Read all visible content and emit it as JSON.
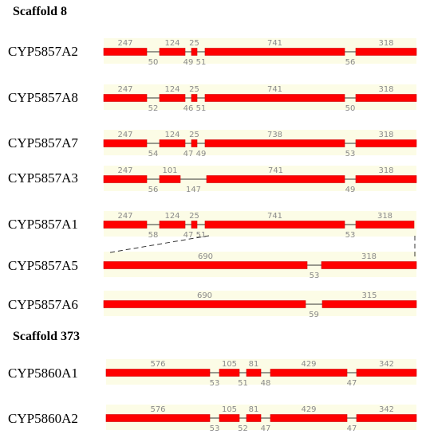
{
  "colors": {
    "exon": "#ff0000",
    "exon_stroke": "#cc0000",
    "intron": "#333333",
    "band": "#fcfce6",
    "label": "#8a8a8a"
  },
  "scaffolds": [
    {
      "title": "Scaffold 8"
    },
    {
      "title": "Scaffold 373"
    }
  ],
  "genes": [
    {
      "name": "CYP5857A2",
      "exons": [
        "247",
        "124",
        "25",
        "741",
        "318"
      ],
      "introns": [
        "50",
        "49",
        "51",
        "56"
      ]
    },
    {
      "name": "CYP5857A8",
      "exons": [
        "247",
        "124",
        "25",
        "741",
        "318"
      ],
      "introns": [
        "52",
        "46",
        "51",
        "50"
      ]
    },
    {
      "name": "CYP5857A7",
      "exons": [
        "247",
        "124",
        "25",
        "738",
        "318"
      ],
      "introns": [
        "54",
        "47",
        "49",
        "53"
      ]
    },
    {
      "name": "CYP5857A3",
      "exons": [
        "247",
        "101",
        "741",
        "318"
      ],
      "introns": [
        "56",
        "147",
        "49"
      ]
    },
    {
      "name": "CYP5857A1",
      "exons": [
        "247",
        "124",
        "25",
        "741",
        "318"
      ],
      "introns": [
        "58",
        "47",
        "51",
        "53"
      ]
    },
    {
      "name": "CYP5857A5",
      "exons": [
        "690",
        "318"
      ],
      "introns": [
        "53"
      ]
    },
    {
      "name": "CYP5857A6",
      "exons": [
        "690",
        "315"
      ],
      "introns": [
        "59"
      ]
    },
    {
      "name": "CYP5860A1",
      "exons": [
        "576",
        "105",
        "81",
        "429",
        "342"
      ],
      "introns": [
        "53",
        "51",
        "48",
        "47"
      ]
    },
    {
      "name": "CYP5860A2",
      "exons": [
        "576",
        "105",
        "81",
        "429",
        "342"
      ],
      "introns": [
        "53",
        "52",
        "47",
        "47"
      ]
    }
  ]
}
